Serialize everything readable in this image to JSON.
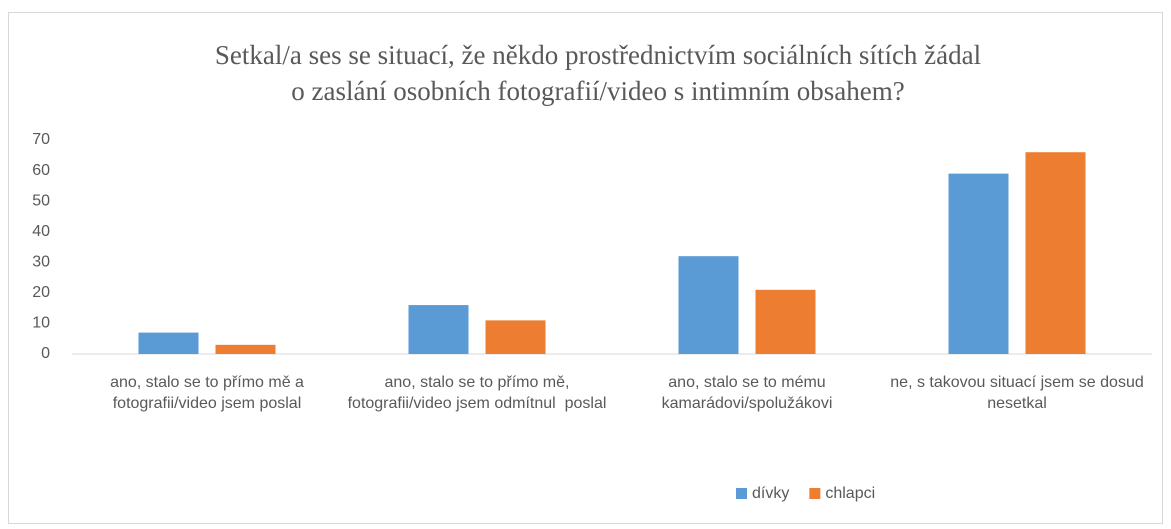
{
  "chart_data": {
    "type": "bar",
    "title": [
      "Setkal/a ses se situací, že někdo prostřednictvím sociálních sítích žádal",
      "o zaslání osobních fotografií/video s intimním obsahem?"
    ],
    "categories": [
      "ano, stalo se to přímo mě a fotografii/video jsem poslal",
      "ano, stalo se to přímo mě, fotografii/video jsem odmítnul  poslal",
      "ano, stalo se to mému kamarádovi/spolužákovi",
      "ne, s takovou situací jsem se dosud nesetkal"
    ],
    "series": [
      {
        "name": "dívky",
        "color": "#5b9bd5",
        "values": [
          7,
          16,
          32,
          59
        ]
      },
      {
        "name": "chlapci",
        "color": "#ed7d31",
        "values": [
          3,
          11,
          21,
          66
        ]
      }
    ],
    "ylim": [
      0,
      70
    ],
    "yticks": [
      0,
      10,
      20,
      30,
      40,
      50,
      60,
      70
    ],
    "grid": false,
    "legend": "bottom"
  }
}
